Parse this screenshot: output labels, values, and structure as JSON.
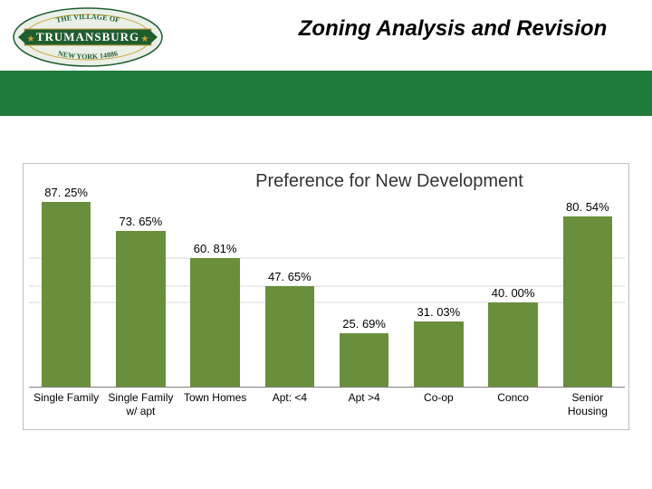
{
  "header": {
    "title": "Zoning Analysis and Revision",
    "band_color": "#1f7a3c",
    "logo": {
      "outer_text_top": "THE VILLAGE OF",
      "outer_text_bottom": "NEW YORK 14886",
      "name": "TRUMANSBURG",
      "bg": "#eaf0e8",
      "dark": "#1f5d2f",
      "gold": "#c9a53a"
    }
  },
  "chart": {
    "type": "bar",
    "title": "Preference for New Development",
    "title_fontsize": 20,
    "label_fontsize": 13,
    "xlabel_fontsize": 12,
    "background_color": "#ffffff",
    "border_color": "#bfbfbf",
    "grid_color": "#d9d9d9",
    "bar_color": "#6a8f3c",
    "bar_width_pct": 66,
    "ymax": 100,
    "gridlines_at": [
      60.81,
      47.65,
      40.0
    ],
    "categories": [
      "Single Family",
      "Single Family\nw/ apt",
      "Town Homes",
      "Apt: <4",
      "Apt >4",
      "Co-op",
      "Conco",
      "Senior\nHousing"
    ],
    "values": [
      87.25,
      73.65,
      60.81,
      47.65,
      25.69,
      31.03,
      40.0,
      80.54
    ],
    "value_labels": [
      "87. 25%",
      "73. 65%",
      "60. 81%",
      "47. 65%",
      "25. 69%",
      "31. 03%",
      "40. 00%",
      "80. 54%"
    ]
  }
}
